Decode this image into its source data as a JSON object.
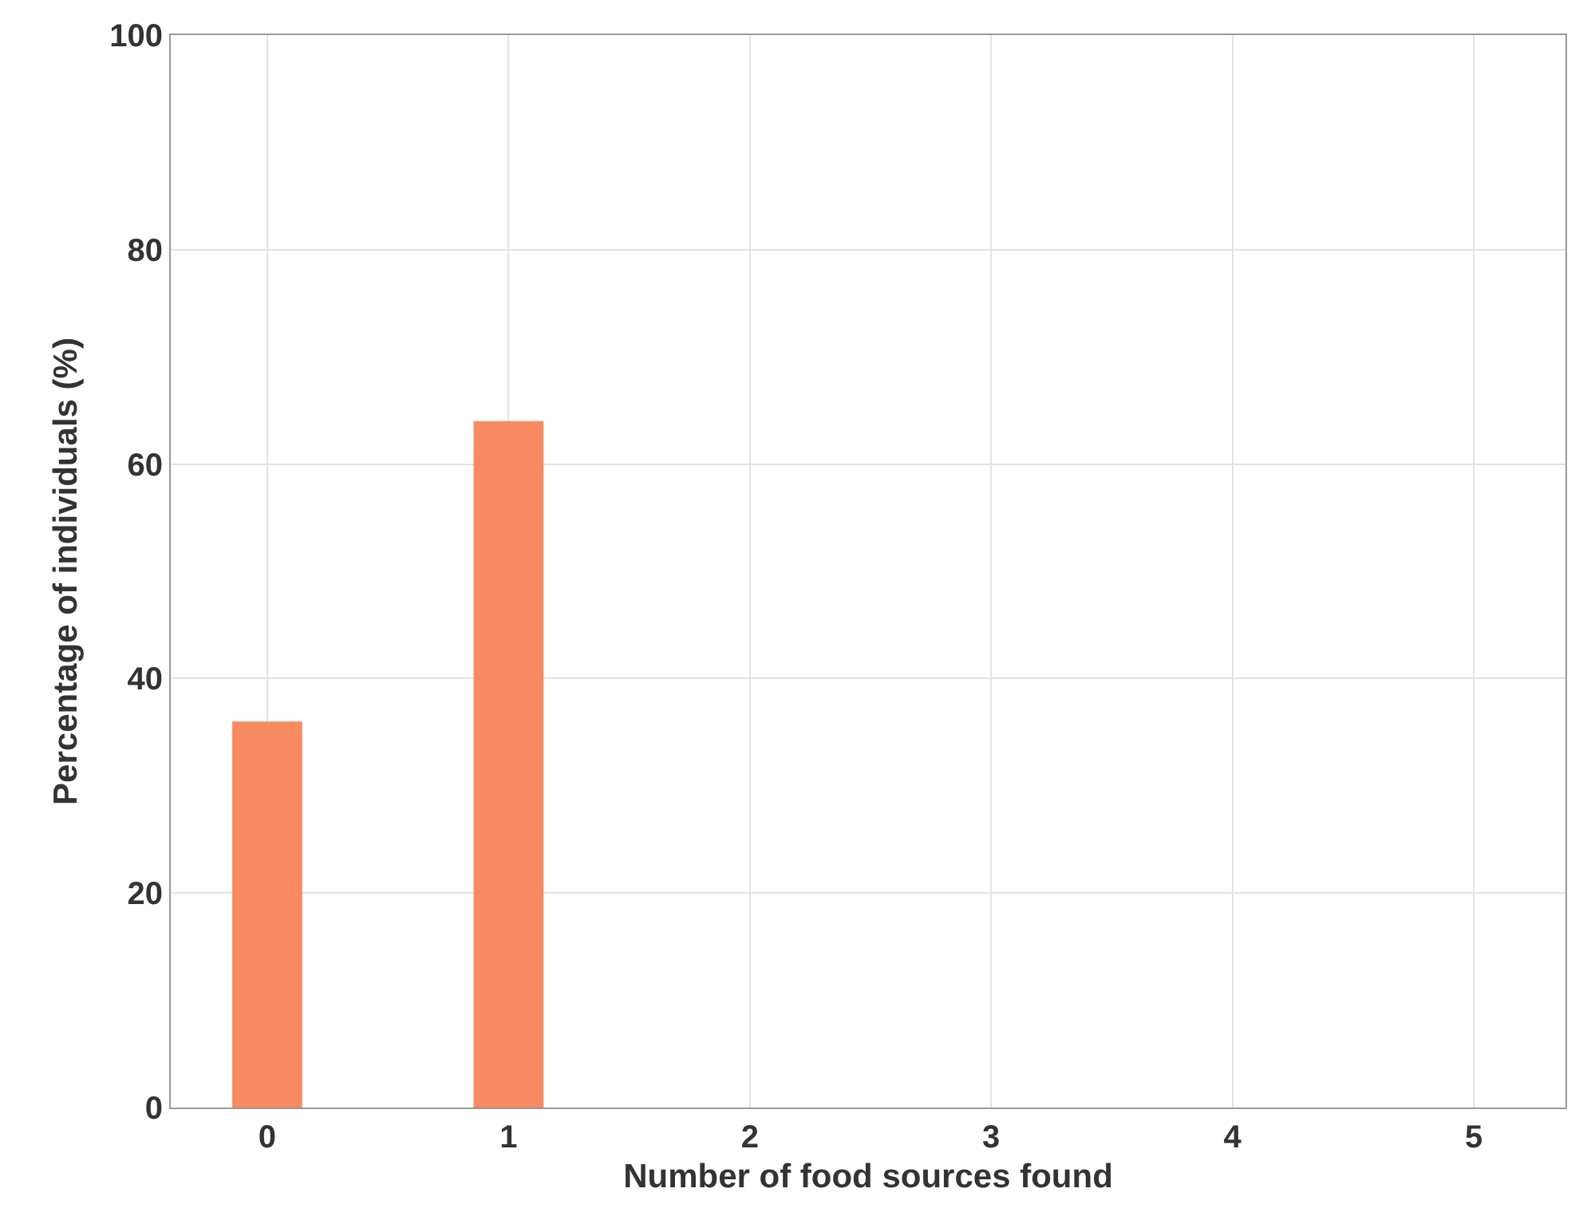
{
  "chart_data": {
    "type": "bar",
    "xlabel": "Number of food sources found",
    "ylabel": "Percentage of individuals (%)",
    "x": [
      0,
      1,
      2,
      3,
      4,
      5
    ],
    "values": [
      36,
      64,
      0,
      0,
      0,
      0
    ],
    "color": "#f78a60",
    "xlim": [
      -0.4,
      5.38
    ],
    "xticks": [
      0,
      1,
      2,
      3,
      4,
      5
    ],
    "ylim": [
      0,
      100
    ],
    "yticks": [
      0,
      20,
      40,
      60,
      80,
      100
    ],
    "grid": true
  }
}
